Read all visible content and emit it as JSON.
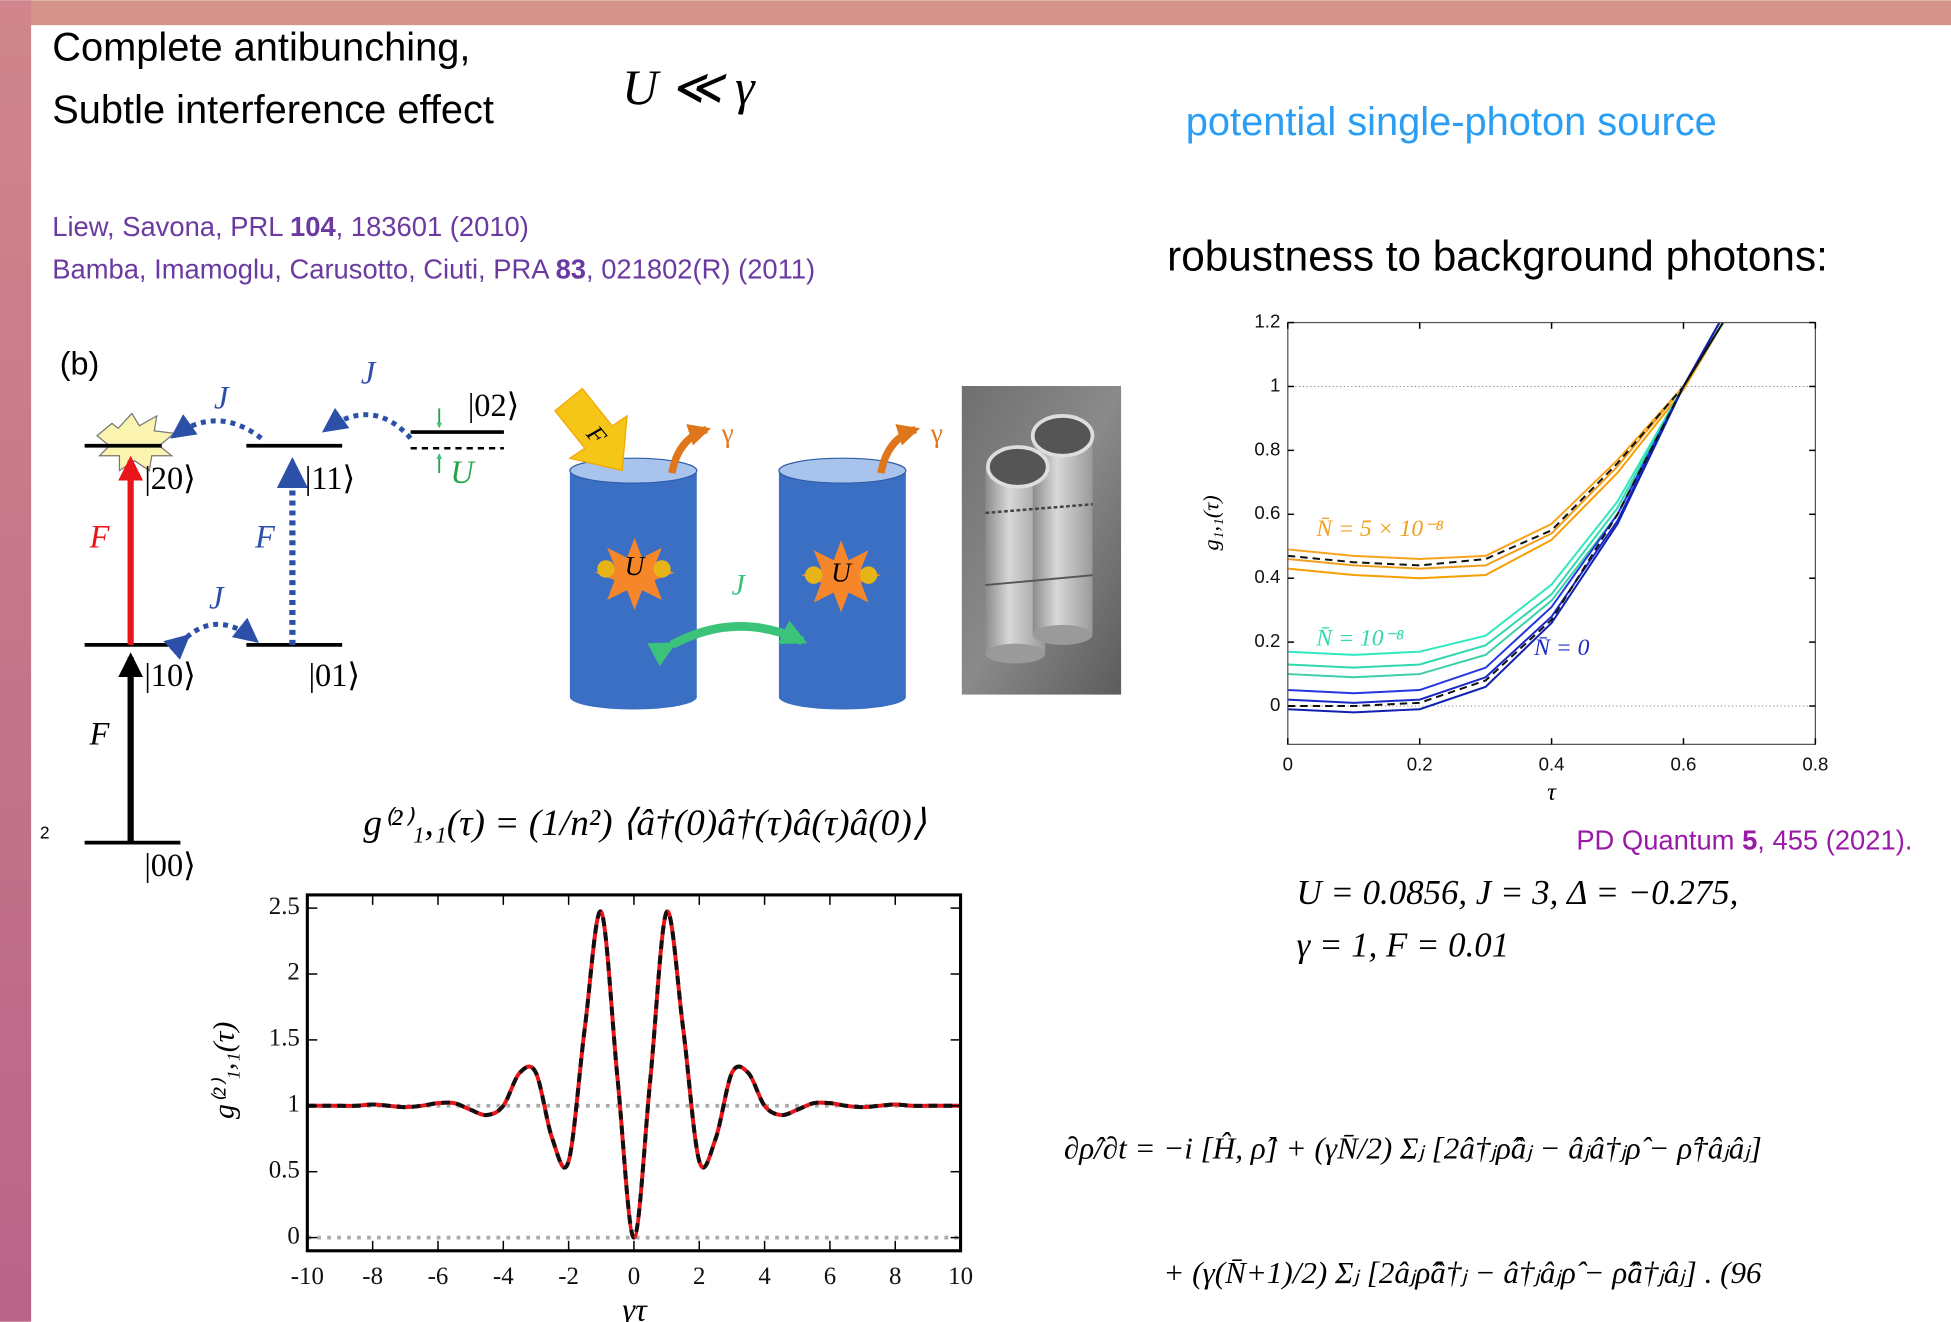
{
  "header": {
    "title_lines": [
      "Complete antibunching,",
      "Subtle interference effect"
    ],
    "condition": "U ≪ γ",
    "highlight": "potential single-photon source"
  },
  "references": [
    {
      "authors": "Liew, Savona, PRL ",
      "volume": "104",
      "rest": ", 183601 (2010)"
    },
    {
      "authors": "Bamba, Imamoglu, Carusotto, Ciuti, PRA ",
      "volume": "83",
      "rest": ", 021802(R) (2011)"
    }
  ],
  "robustness": "robustness to background photons:",
  "citation": {
    "journal": "PD Quantum ",
    "volume": "5",
    "rest": ", 455 (2021)."
  },
  "parameters": [
    "U = 0.0856,  J = 3,  Δ = −0.275,",
    "γ = 1,  F = 0.01"
  ],
  "formula": "g⁽²⁾₁,₁(τ) = (1/n²) ⟨â†(0)â†(τ)â(τ)â(0)⟩",
  "master_equation": [
    "∂ρ̂/∂t = −i [Ĥ, ρ̂] + (γN̄/2) Σⱼ [2â†ⱼρ̂âⱼ − âⱼâ†ⱼρ̂ − ρ̂†âⱼâⱼ]",
    "+ (γ(N̄+1)/2) Σⱼ [2âⱼρ̂â†ⱼ − â†ⱼâⱼρ̂ − ρ̂â†ⱼâⱼ] .   (96"
  ],
  "side_mark": "2",
  "diagram": {
    "panel": "(b)",
    "j_top_left": "J",
    "j_top_right": "J",
    "j_bottom": "J",
    "ket02": "|02⟩",
    "ket20": "|20⟩",
    "ket11": "|11⟩",
    "shift": "U",
    "f_red": "F",
    "f_blue": "F",
    "f_black": "F",
    "ket10": "|10⟩",
    "ket01": "|01⟩",
    "ket00": "|00⟩",
    "pump": "F",
    "gamma_left": "γ",
    "gamma_right": "γ",
    "u_left": "U",
    "u_right": "U",
    "j_cavity": "J"
  },
  "chart_data": [
    {
      "type": "line",
      "xlabel": "γτ",
      "ylabel": "g⁽²⁾₁,₁(τ)",
      "x": [
        -10,
        -9.5,
        -9,
        -8.5,
        -8,
        -7.5,
        -7,
        -6.5,
        -6,
        -5.5,
        -5,
        -4.5,
        -4,
        -3.5,
        -3,
        -2.5,
        -2,
        -1.5,
        -1,
        -0.5,
        0,
        0.5,
        1,
        1.5,
        2,
        2.5,
        3,
        3.5,
        4,
        4.5,
        5,
        5.5,
        6,
        6.5,
        7,
        7.5,
        8,
        8.5,
        9,
        9.5,
        10
      ],
      "series": [
        {
          "color": "#e8151b",
          "style": "solid",
          "values": [
            1.0,
            1.0,
            1.0,
            1.0,
            1.01,
            1.0,
            0.99,
            1.0,
            1.02,
            1.02,
            0.97,
            0.93,
            1.0,
            1.25,
            1.25,
            0.75,
            0.58,
            1.6,
            2.47,
            1.2,
            0,
            1.2,
            2.47,
            1.6,
            0.58,
            0.75,
            1.25,
            1.25,
            1.0,
            0.93,
            0.97,
            1.02,
            1.02,
            1.0,
            0.99,
            1.0,
            1.01,
            1.0,
            1.0,
            1.0,
            1.0
          ]
        },
        {
          "color": "#111111",
          "style": "dashed",
          "values": [
            1.0,
            1.0,
            1.0,
            1.0,
            1.01,
            1.0,
            0.99,
            1.0,
            1.02,
            1.02,
            0.97,
            0.93,
            1.0,
            1.25,
            1.25,
            0.75,
            0.58,
            1.6,
            2.47,
            1.2,
            0,
            1.2,
            2.47,
            1.6,
            0.58,
            0.75,
            1.25,
            1.25,
            1.0,
            0.93,
            0.97,
            1.02,
            1.02,
            1.0,
            0.99,
            1.0,
            1.01,
            1.0,
            1.0,
            1.0,
            1.0
          ]
        }
      ],
      "reference_lines": [
        0,
        1
      ],
      "xlim": [
        -10,
        10
      ],
      "xticks": [
        -10,
        -8,
        -6,
        -4,
        -2,
        0,
        2,
        4,
        6,
        8,
        10
      ],
      "ylim": [
        -0.1,
        2.6
      ],
      "yticks": [
        0,
        0.5,
        1,
        1.5,
        2,
        2.5
      ]
    },
    {
      "type": "line",
      "xlabel": "τ",
      "ylabel": "g₁,₁(τ)",
      "x": [
        0,
        0.1,
        0.2,
        0.3,
        0.4,
        0.5,
        0.6,
        0.66
      ],
      "series": [
        {
          "color": "#f7a41d",
          "style": "solid",
          "values": [
            0.49,
            0.47,
            0.46,
            0.47,
            0.57,
            0.77,
            1.0,
            1.2
          ]
        },
        {
          "color": "#f0a020",
          "style": "solid",
          "values": [
            0.46,
            0.44,
            0.43,
            0.44,
            0.54,
            0.75,
            1.0,
            1.2
          ]
        },
        {
          "color": "#f5a000",
          "style": "solid",
          "values": [
            0.43,
            0.41,
            0.4,
            0.41,
            0.52,
            0.73,
            0.99,
            1.2
          ]
        },
        {
          "color": "#2ee8c0",
          "style": "solid",
          "values": [
            0.17,
            0.16,
            0.17,
            0.22,
            0.38,
            0.64,
            1.0,
            1.2
          ]
        },
        {
          "color": "#30d8b0",
          "style": "solid",
          "values": [
            0.13,
            0.12,
            0.13,
            0.19,
            0.35,
            0.62,
            1.0,
            1.2
          ]
        },
        {
          "color": "#3ccfa8",
          "style": "solid",
          "values": [
            0.1,
            0.09,
            0.1,
            0.16,
            0.33,
            0.6,
            1.0,
            1.2
          ]
        },
        {
          "color": "#2436e0",
          "style": "solid",
          "values": [
            0.05,
            0.04,
            0.05,
            0.12,
            0.31,
            0.6,
            1.0,
            1.22
          ]
        },
        {
          "color": "#1a28c8",
          "style": "solid",
          "values": [
            0.02,
            0.01,
            0.02,
            0.09,
            0.28,
            0.58,
            1.0,
            1.22
          ]
        },
        {
          "color": "#1020b0",
          "style": "solid",
          "values": [
            -0.01,
            -0.02,
            -0.01,
            0.06,
            0.26,
            0.57,
            1.0,
            1.22
          ]
        },
        {
          "color": "#111111",
          "style": "dashed",
          "values": [
            0.47,
            0.45,
            0.44,
            0.46,
            0.55,
            0.76,
            1.0,
            1.2
          ]
        },
        {
          "color": "#111111",
          "style": "dashed",
          "values": [
            0.0,
            0.0,
            0.01,
            0.08,
            0.27,
            0.6,
            1.0,
            1.2
          ]
        }
      ],
      "annotations": [
        {
          "text": "N̄ = 5 × 10⁻⁸",
          "color": "#f0a020"
        },
        {
          "text": "N̄ = 10⁻⁸",
          "color": "#30d8b0"
        },
        {
          "text": "N̄ = 0",
          "color": "#1a28c8"
        }
      ],
      "reference_lines": [
        0,
        1
      ],
      "xlim": [
        0,
        0.8
      ],
      "xticks": [
        0,
        0.2,
        0.4,
        0.6,
        0.8
      ],
      "ylim": [
        -0.12,
        1.2
      ],
      "yticks": [
        0,
        0.2,
        0.4,
        0.6,
        0.8,
        1,
        1.2
      ]
    }
  ]
}
